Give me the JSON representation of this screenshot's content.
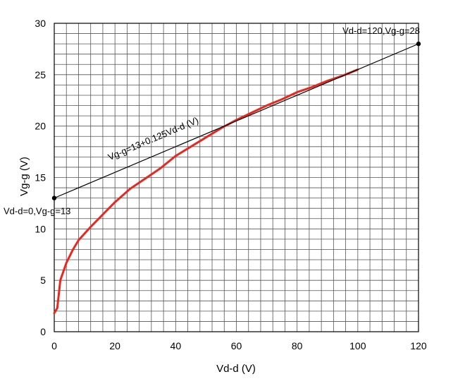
{
  "chart_data": {
    "type": "line",
    "title": "",
    "xlabel": "Vd-d (V)",
    "ylabel": "Vg-g (V)",
    "xlim": [
      0,
      120
    ],
    "ylim": [
      0,
      30
    ],
    "x_ticks": [
      0,
      20,
      40,
      60,
      80,
      100,
      120
    ],
    "y_ticks": [
      0,
      5,
      10,
      15,
      20,
      25,
      30
    ],
    "x_minor_step": 4,
    "y_minor_step": 1,
    "grid": true,
    "series": [
      {
        "color": "#e8271f",
        "x": [
          0,
          1,
          2,
          4,
          6,
          8,
          12,
          16,
          20,
          25,
          30,
          35,
          40,
          45,
          50,
          55,
          60,
          65,
          70,
          75,
          80,
          85,
          90,
          95,
          100
        ],
        "y": [
          1.8,
          2.3,
          5.0,
          6.7,
          7.9,
          8.9,
          10.2,
          11.4,
          12.6,
          13.9,
          14.9,
          15.9,
          17.1,
          18.0,
          18.9,
          19.8,
          20.6,
          21.3,
          22.0,
          22.6,
          23.3,
          23.8,
          24.4,
          24.9,
          25.5
        ]
      },
      {
        "color": "#000000",
        "x": [
          0,
          120
        ],
        "y": [
          13,
          28
        ]
      }
    ],
    "points": [
      {
        "x": 0,
        "y": 13,
        "label": "Vd-d=0,Vg-g=13"
      },
      {
        "x": 120,
        "y": 28,
        "label": "Vd-d=120,Vg-g=28"
      }
    ],
    "annotations": [
      {
        "text": "Vg-g=13+0.125Vd-d (V)",
        "x": 33,
        "y": 18.5
      }
    ]
  }
}
